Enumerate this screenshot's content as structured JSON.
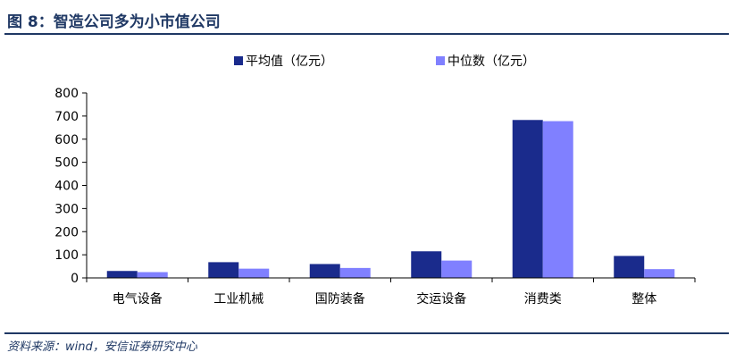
{
  "figure": {
    "title": "图 8：智造公司多为小市值公司",
    "source": "资料来源：wind，安信证券研究中心"
  },
  "colors": {
    "primary": "#1F3864",
    "series_mean": "#1A2B8C",
    "series_median": "#8080FF"
  },
  "chart_data": {
    "type": "bar",
    "categories": [
      "电气设备",
      "工业机械",
      "国防装备",
      "交运设备",
      "消费类",
      "整体"
    ],
    "series": [
      {
        "name": "平均值（亿元）",
        "values": [
          30,
          68,
          60,
          115,
          683,
          95
        ]
      },
      {
        "name": "中位数（亿元）",
        "values": [
          25,
          40,
          43,
          75,
          678,
          38
        ]
      }
    ],
    "yticks": [
      0,
      100,
      200,
      300,
      400,
      500,
      600,
      700,
      800
    ],
    "ylim": [
      0,
      800
    ],
    "xlabel": "",
    "ylabel": "",
    "grid": false,
    "legend": "top-center"
  }
}
